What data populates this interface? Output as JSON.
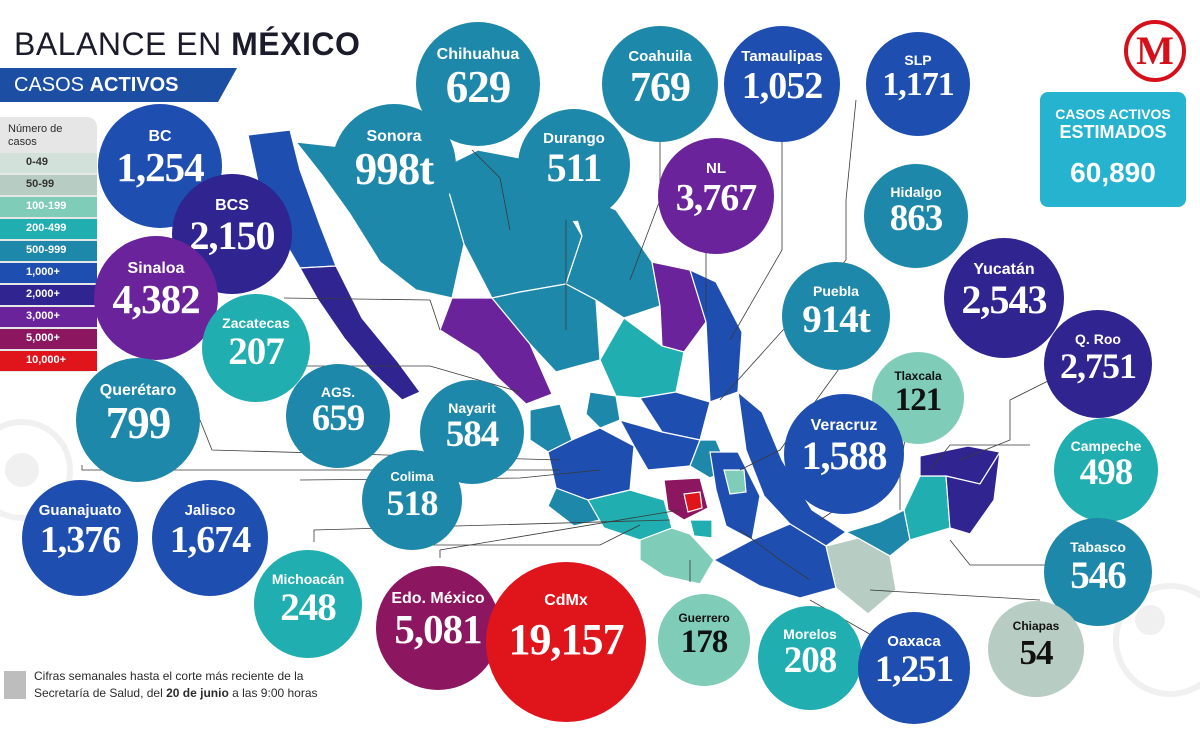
{
  "header": {
    "title_light": "BALANCE EN",
    "title_bold": "MÉXICO",
    "subtitle_light": "CASOS",
    "subtitle_bold": "ACTIVOS"
  },
  "legend": {
    "title": "Número de casos",
    "items": [
      {
        "label": "0-49",
        "color": "#d2e2da"
      },
      {
        "label": "50-99",
        "color": "#b7ccc2"
      },
      {
        "label": "100-199",
        "color": "#7fcdb8"
      },
      {
        "label": "200-499",
        "color": "#20aeb0"
      },
      {
        "label": "500-999",
        "color": "#1e88aa"
      },
      {
        "label": "1,000+",
        "color": "#1e4fb0"
      },
      {
        "label": "2,000+",
        "color": "#2f2490"
      },
      {
        "label": "3,000+",
        "color": "#6a239a"
      },
      {
        "label": "5,000+",
        "color": "#8c1660"
      },
      {
        "label": "10,000+",
        "color": "#e0141b"
      }
    ]
  },
  "logo": {
    "letter": "M"
  },
  "total": {
    "line1": "CASOS ACTIVOS",
    "line2": "ESTIMADOS",
    "value": "60,890"
  },
  "note": {
    "text_before": "Cifras semanales hasta el corte más reciente de la Secretaría de Salud, del",
    "date_bold": "20 de junio",
    "text_after": "a las 9:00 horas"
  },
  "states": [
    {
      "name": "Chihuahua",
      "value": "629",
      "color": "#1e88aa"
    },
    {
      "name": "Coahuila",
      "value": "769",
      "color": "#1e88aa"
    },
    {
      "name": "Tamaulipas",
      "value": "1,052",
      "color": "#1e4fb0"
    },
    {
      "name": "SLP",
      "value": "1,171",
      "color": "#1e4fb0"
    },
    {
      "name": "BC",
      "value": "1,254",
      "color": "#1e4fb0"
    },
    {
      "name": "Sonora",
      "value": "998t",
      "color": "#1e88aa"
    },
    {
      "name": "Durango",
      "value": "511",
      "color": "#1e88aa"
    },
    {
      "name": "NL",
      "value": "3,767",
      "color": "#6a239a"
    },
    {
      "name": "Hidalgo",
      "value": "863",
      "color": "#1e88aa"
    },
    {
      "name": "BCS",
      "value": "2,150",
      "color": "#2f2490"
    },
    {
      "name": "Sinaloa",
      "value": "4,382",
      "color": "#6a239a"
    },
    {
      "name": "Yucatán",
      "value": "2,543",
      "color": "#2f2490"
    },
    {
      "name": "Puebla",
      "value": "914t",
      "color": "#1e88aa"
    },
    {
      "name": "Zacatecas",
      "value": "207",
      "color": "#20aeb0"
    },
    {
      "name": "Q. Roo",
      "value": "2,751",
      "color": "#2f2490"
    },
    {
      "name": "Tlaxcala",
      "value": "121",
      "color": "#7fcdb8"
    },
    {
      "name": "Querétaro",
      "value": "799",
      "color": "#1e88aa"
    },
    {
      "name": "AGS.",
      "value": "659",
      "color": "#1e88aa"
    },
    {
      "name": "Nayarit",
      "value": "584",
      "color": "#1e88aa"
    },
    {
      "name": "Veracruz",
      "value": "1,588",
      "color": "#1e4fb0"
    },
    {
      "name": "Campeche",
      "value": "498",
      "color": "#20aeb0"
    },
    {
      "name": "Colima",
      "value": "518",
      "color": "#1e88aa"
    },
    {
      "name": "Guanajuato",
      "value": "1,376",
      "color": "#1e4fb0"
    },
    {
      "name": "Jalisco",
      "value": "1,674",
      "color": "#1e4fb0"
    },
    {
      "name": "Tabasco",
      "value": "546",
      "color": "#1e88aa"
    },
    {
      "name": "Michoacán",
      "value": "248",
      "color": "#20aeb0"
    },
    {
      "name": "Edo. México",
      "value": "5,081",
      "color": "#8c1660"
    },
    {
      "name": "CdMx",
      "value": "19,157",
      "color": "#e0141b"
    },
    {
      "name": "Guerrero",
      "value": "178",
      "color": "#7fcdb8"
    },
    {
      "name": "Morelos",
      "value": "208",
      "color": "#20aeb0"
    },
    {
      "name": "Oaxaca",
      "value": "1,251",
      "color": "#1e4fb0"
    },
    {
      "name": "Chiapas",
      "value": "54",
      "color": "#b7ccc2"
    }
  ]
}
